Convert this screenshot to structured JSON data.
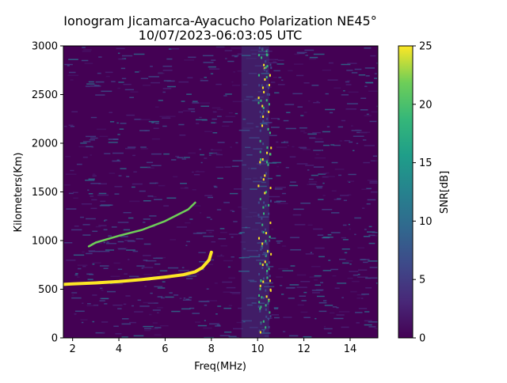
{
  "chart_data": {
    "type": "heatmap",
    "title_line1": "Ionogram Jicamarca-Ayacucho Polarization NE45°",
    "title_line2": "10/07/2023-06:03:05 UTC",
    "xlabel": "Freq(MHz)",
    "ylabel": "Kilometers(Km)",
    "xlim": [
      1.6,
      15.2
    ],
    "ylim": [
      0,
      3000
    ],
    "xticks": [
      2,
      4,
      6,
      8,
      10,
      12,
      14
    ],
    "yticks": [
      0,
      500,
      1000,
      1500,
      2000,
      2500,
      3000
    ],
    "colorbar": {
      "label": "SNR[dB]",
      "range": [
        0,
        25
      ],
      "ticks": [
        0,
        5,
        10,
        15,
        20,
        25
      ],
      "colormap": "viridis"
    },
    "traces": [
      {
        "name_hint": "F-layer echo",
        "points": [
          [
            1.6,
            550
          ],
          [
            2.0,
            555
          ],
          [
            3.0,
            565
          ],
          [
            4.0,
            580
          ],
          [
            5.0,
            600
          ],
          [
            6.0,
            625
          ],
          [
            6.8,
            650
          ],
          [
            7.3,
            680
          ],
          [
            7.6,
            720
          ],
          [
            7.9,
            800
          ],
          [
            8.0,
            880
          ]
        ]
      },
      {
        "name_hint": "F-layer second hop",
        "points": [
          [
            2.7,
            940
          ],
          [
            3.0,
            980
          ],
          [
            4.0,
            1050
          ],
          [
            5.0,
            1110
          ],
          [
            6.0,
            1200
          ],
          [
            6.5,
            1260
          ],
          [
            7.0,
            1320
          ],
          [
            7.3,
            1390
          ]
        ]
      }
    ],
    "interference_band": {
      "x_range": [
        9.3,
        10.5
      ],
      "y_range": [
        0,
        3000
      ]
    }
  }
}
